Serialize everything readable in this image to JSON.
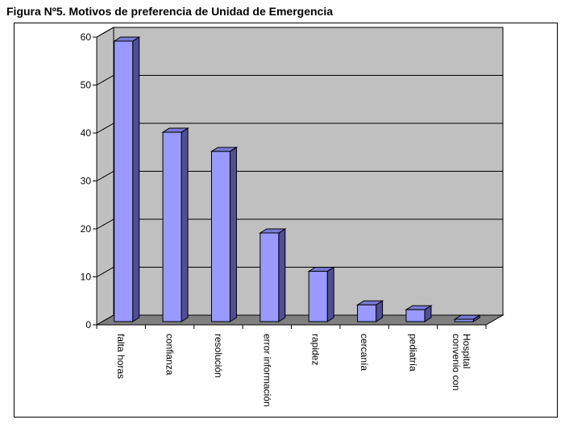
{
  "title": "Figura Nº5. Motivos de preferencia de Unidad de Emergencia",
  "chart_data": {
    "type": "bar",
    "title": "Figura Nº5. Motivos de preferencia de Unidad de Emergencia",
    "xlabel": "",
    "ylabel": "",
    "categories": [
      [
        "falta horas"
      ],
      [
        "confianza"
      ],
      [
        "resolución"
      ],
      [
        "error  información"
      ],
      [
        "rapidez"
      ],
      [
        "cercanía"
      ],
      [
        "pediatría"
      ],
      [
        "convenio con",
        "Hospital"
      ]
    ],
    "values": [
      60,
      41,
      37,
      20,
      12,
      5,
      4,
      2
    ],
    "ylim": [
      0,
      60
    ],
    "yticks": [
      "0",
      "10",
      "20",
      "30",
      "40",
      "50",
      "60"
    ],
    "grid": true,
    "legend": "none",
    "three_d": true,
    "colors": {
      "bar_front": "#9999ff",
      "bar_side": "#4f4f94",
      "bar_top": "#7a7ad6",
      "wall": "#c0c0c0",
      "floor": "#808080",
      "gridline": "#000000"
    }
  }
}
